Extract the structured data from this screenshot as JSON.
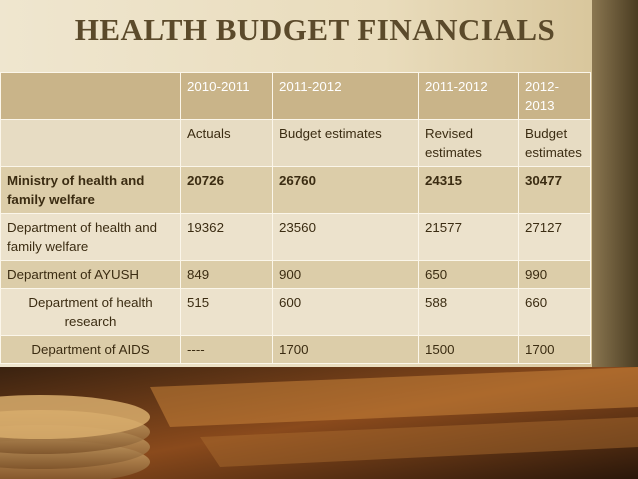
{
  "header": {
    "title": "HEALTH BUDGET FINANCIALS"
  },
  "table": {
    "header_rows": [
      [
        "2010-2011",
        "2011-2012",
        "2011-2012",
        "2012-2013"
      ],
      [
        "Actuals",
        "Budget estimates",
        "Revised estimates",
        "Budget estimates"
      ]
    ],
    "rows": [
      [
        "Ministry of health and family welfare",
        "20726",
        "26760",
        "24315",
        "30477"
      ],
      [
        "Department of health and family welfare",
        "19362",
        "23560",
        "21577",
        "27127"
      ],
      [
        "Department of AYUSH",
        "849",
        "900",
        "650",
        "990"
      ],
      [
        "Department of health research",
        "515",
        "600",
        "588",
        "660"
      ],
      [
        "Department of AIDS",
        "----",
        "1700",
        "1500",
        "1700"
      ]
    ]
  }
}
